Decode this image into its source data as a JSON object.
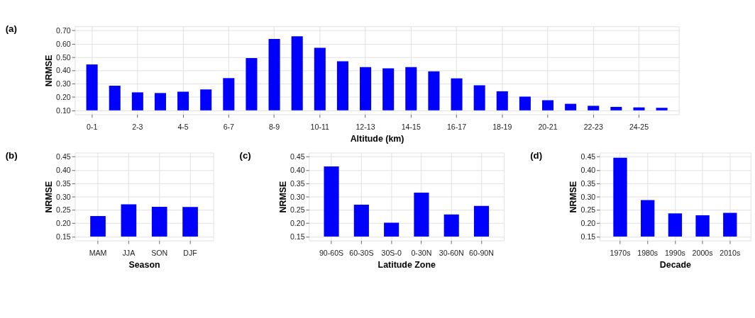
{
  "chart_data": [
    {
      "type": "bar",
      "title": "(a)",
      "xlabel": "Altitude (km)",
      "ylabel": "NRMSE",
      "color": "#0000ff",
      "grid": true,
      "categories": [
        "0-1",
        null,
        "2-3",
        null,
        "4-5",
        null,
        "6-7",
        null,
        "8-9",
        null,
        "10-11",
        null,
        "12-13",
        null,
        "14-15",
        null,
        "16-17",
        null,
        "18-19",
        null,
        "20-21",
        null,
        "22-23",
        null,
        "24-25",
        null
      ],
      "values": [
        0.345,
        0.185,
        0.135,
        0.13,
        0.14,
        0.157,
        0.242,
        0.393,
        0.536,
        0.556,
        0.47,
        0.369,
        0.325,
        0.315,
        0.324,
        0.293,
        0.24,
        0.188,
        0.143,
        0.103,
        0.076,
        0.049,
        0.034,
        0.026,
        0.022,
        0.019
      ],
      "base": [
        0.1,
        0.1,
        0.1,
        0.1,
        0.1,
        0.1,
        0.1,
        0.1,
        0.1,
        0.1,
        0.1,
        0.1,
        0.1,
        0.1,
        0.1,
        0.1,
        0.1,
        0.1,
        0.1,
        0.1,
        0.1,
        0.1,
        0.1,
        0.1,
        0.1,
        0.1
      ],
      "ylim": [
        0.07,
        0.73
      ],
      "yticks": [
        {
          "value": 0.1,
          "label": "0.10"
        },
        {
          "value": 0.2,
          "label": "0.20"
        },
        {
          "value": 0.3,
          "label": "0.30"
        },
        {
          "value": 0.4,
          "label": "0.40"
        },
        {
          "value": 0.5,
          "label": "0.50"
        },
        {
          "value": 0.6,
          "label": "0.60"
        },
        {
          "value": 0.7,
          "label": "0.70"
        }
      ]
    },
    {
      "type": "bar",
      "title": "(b)",
      "xlabel": "Season",
      "ylabel": "NRMSE",
      "color": "#0000ff",
      "grid": true,
      "categories": [
        "MAM",
        "JJA",
        "SON",
        "DJF"
      ],
      "values": [
        0.077,
        0.121,
        0.112,
        0.111
      ],
      "base": [
        0.15,
        0.15,
        0.15,
        0.15
      ],
      "ylim": [
        0.135,
        0.465
      ],
      "yticks": [
        {
          "value": 0.15,
          "label": "0.15"
        },
        {
          "value": 0.2,
          "label": "0.20"
        },
        {
          "value": 0.25,
          "label": "0.25"
        },
        {
          "value": 0.3,
          "label": "0.30"
        },
        {
          "value": 0.35,
          "label": "0.35"
        },
        {
          "value": 0.4,
          "label": "0.40"
        },
        {
          "value": 0.45,
          "label": "0.45"
        }
      ]
    },
    {
      "type": "bar",
      "title": "(c)",
      "xlabel": "Latitude Zone",
      "ylabel": "NRMSE",
      "color": "#0000ff",
      "grid": true,
      "categories": [
        "90-60S",
        "60-30S",
        "30S-0",
        "0-30N",
        "30-60N",
        "60-90N"
      ],
      "values": [
        0.263,
        0.12,
        0.052,
        0.165,
        0.083,
        0.115
      ],
      "base": [
        0.15,
        0.15,
        0.15,
        0.15,
        0.15,
        0.15
      ],
      "ylim": [
        0.135,
        0.465
      ],
      "yticks": [
        {
          "value": 0.15,
          "label": "0.15"
        },
        {
          "value": 0.2,
          "label": "0.20"
        },
        {
          "value": 0.25,
          "label": "0.25"
        },
        {
          "value": 0.3,
          "label": "0.30"
        },
        {
          "value": 0.35,
          "label": "0.35"
        },
        {
          "value": 0.4,
          "label": "0.40"
        },
        {
          "value": 0.45,
          "label": "0.45"
        }
      ]
    },
    {
      "type": "bar",
      "title": "(d)",
      "xlabel": "Decade",
      "ylabel": "NRMSE",
      "color": "#0000ff",
      "grid": true,
      "categories": [
        "1970s",
        "1980s",
        "1990s",
        "2000s",
        "2010s"
      ],
      "values": [
        0.296,
        0.137,
        0.087,
        0.08,
        0.089
      ],
      "base": [
        0.15,
        0.15,
        0.15,
        0.15,
        0.15
      ],
      "ylim": [
        0.135,
        0.465
      ],
      "yticks": [
        {
          "value": 0.15,
          "label": "0.15"
        },
        {
          "value": 0.2,
          "label": "0.20"
        },
        {
          "value": 0.25,
          "label": "0.25"
        },
        {
          "value": 0.3,
          "label": "0.30"
        },
        {
          "value": 0.35,
          "label": "0.35"
        },
        {
          "value": 0.4,
          "label": "0.40"
        },
        {
          "value": 0.45,
          "label": "0.45"
        }
      ]
    }
  ]
}
